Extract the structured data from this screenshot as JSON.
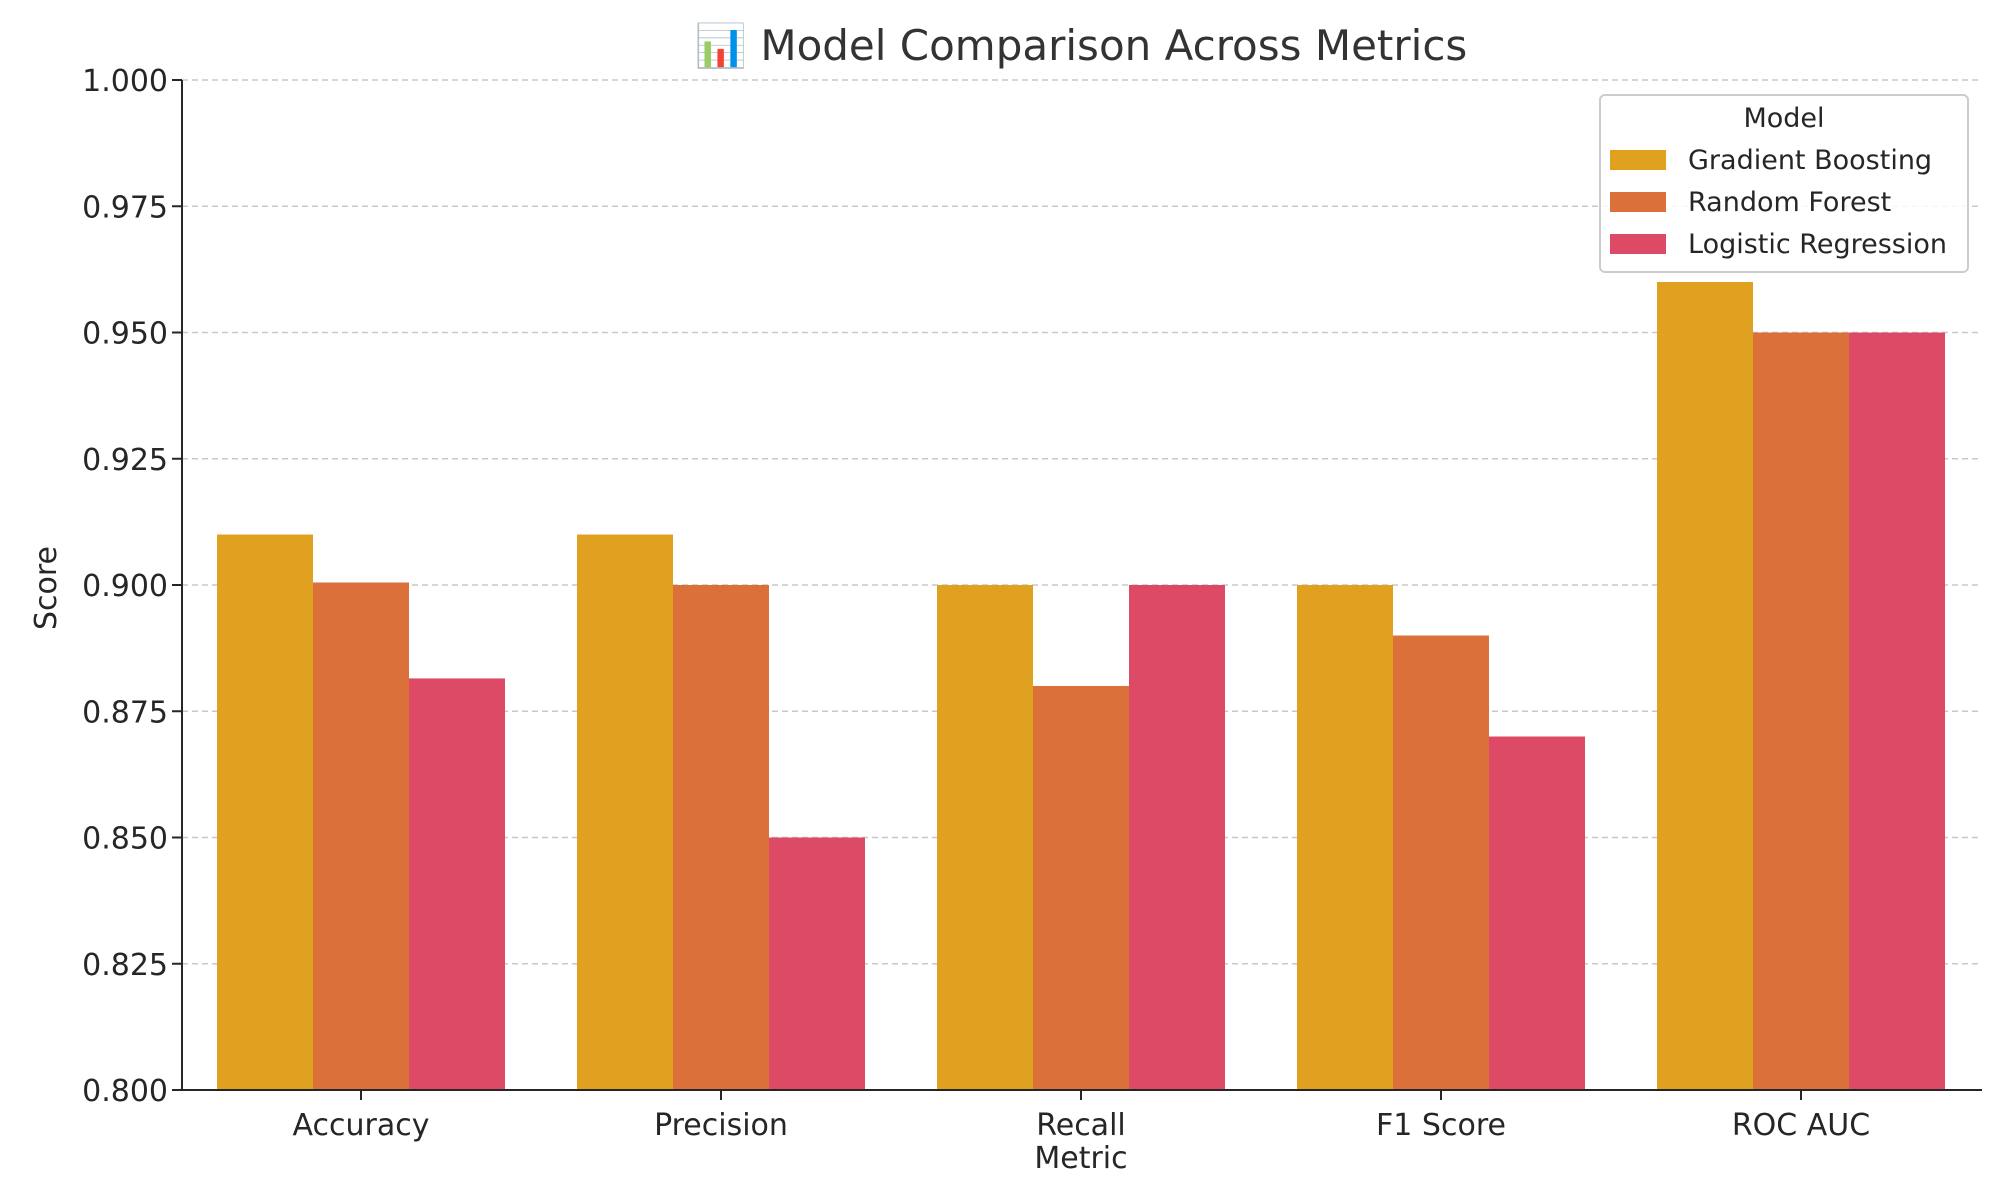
{
  "chart_data": {
    "type": "bar",
    "title": "📊 Model Comparison Across Metrics",
    "xlabel": "Metric",
    "ylabel": "Score",
    "categories": [
      "Accuracy",
      "Precision",
      "Recall",
      "F1 Score",
      "ROC AUC"
    ],
    "series": [
      {
        "name": "Gradient Boosting",
        "color": "#e0a121",
        "values": [
          0.91,
          0.91,
          0.9,
          0.9,
          0.96
        ]
      },
      {
        "name": "Random Forest",
        "color": "#db703b",
        "values": [
          0.9005,
          0.9,
          0.88,
          0.89,
          0.95
        ]
      },
      {
        "name": "Logistic Regression",
        "color": "#dc4a66",
        "values": [
          0.8815,
          0.85,
          0.9,
          0.87,
          0.95
        ]
      }
    ],
    "ylim": [
      0.8,
      1.0
    ],
    "yticks": [
      "0.800",
      "0.825",
      "0.850",
      "0.875",
      "0.900",
      "0.925",
      "0.950",
      "0.975",
      "1.000"
    ],
    "grid": true,
    "legend": {
      "title": "Model",
      "placement": "top-right"
    }
  }
}
